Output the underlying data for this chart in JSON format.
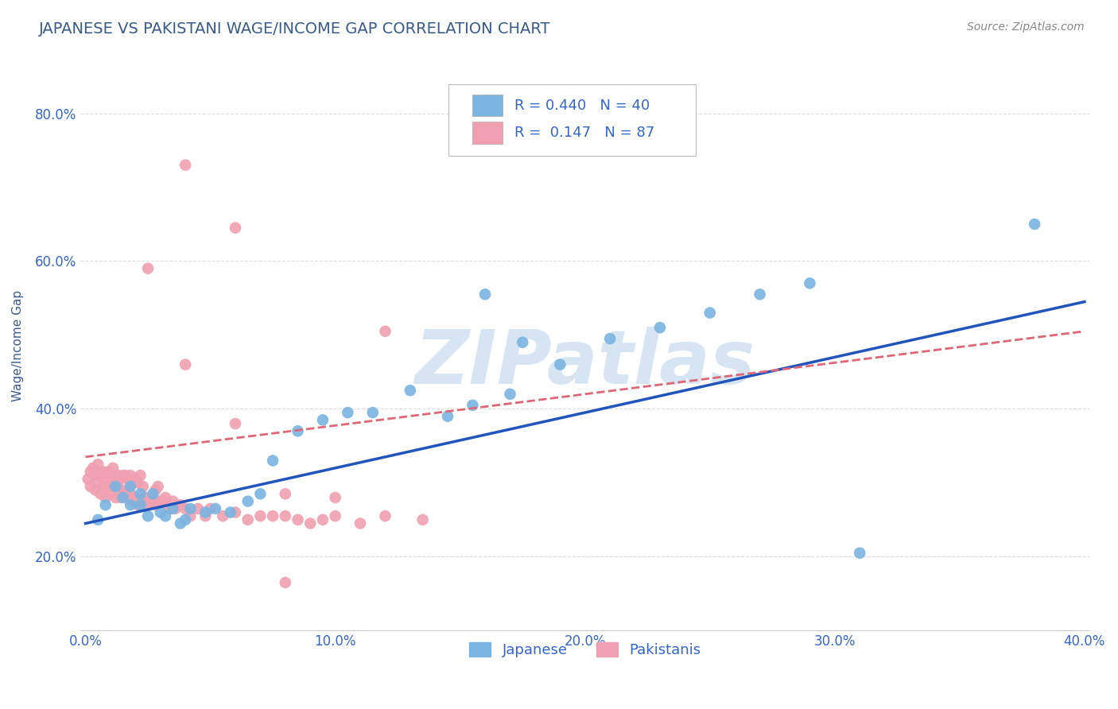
{
  "title": "JAPANESE VS PAKISTANI WAGE/INCOME GAP CORRELATION CHART",
  "source": "Source: ZipAtlas.com",
  "ylabel": "Wage/Income Gap",
  "xlim": [
    -0.002,
    0.402
  ],
  "ylim": [
    0.1,
    0.87
  ],
  "xticks": [
    0.0,
    0.1,
    0.2,
    0.3,
    0.4
  ],
  "xticklabels": [
    "0.0%",
    "10.0%",
    "20.0%",
    "30.0%",
    "40.0%"
  ],
  "yticks": [
    0.2,
    0.4,
    0.6,
    0.8
  ],
  "yticklabels": [
    "20.0%",
    "40.0%",
    "60.0%",
    "80.0%"
  ],
  "watermark": "ZIPatlas",
  "watermark_color": "#b0cce8",
  "background_color": "#ffffff",
  "title_color": "#3a5a8a",
  "title_fontsize": 14,
  "source_fontsize": 10,
  "axis_color": "#cccccc",
  "grid_color": "#dddddd",
  "legend_label_japanese": "Japanese",
  "legend_label_pakistani": "Pakistanis",
  "blue_color": "#7ab4e0",
  "pink_color": "#f0a0b0",
  "blue_line_color": "#2255bb",
  "pink_line_color": "#dd6677",
  "tick_label_color": "#3366cc",
  "tick_label_fontsize": 12,
  "blue_line_y0": 0.245,
  "blue_line_y1": 0.545,
  "pink_line_y0": 0.335,
  "pink_line_y1": 0.505,
  "japanese_x": [
    0.005,
    0.008,
    0.012,
    0.015,
    0.018,
    0.018,
    0.022,
    0.022,
    0.025,
    0.027,
    0.03,
    0.032,
    0.035,
    0.038,
    0.04,
    0.042,
    0.048,
    0.052,
    0.058,
    0.065,
    0.07,
    0.075,
    0.085,
    0.095,
    0.105,
    0.115,
    0.13,
    0.145,
    0.155,
    0.17,
    0.19,
    0.21,
    0.23,
    0.25,
    0.27,
    0.29,
    0.16,
    0.175,
    0.38,
    0.31
  ],
  "japanese_y": [
    0.25,
    0.27,
    0.295,
    0.28,
    0.27,
    0.295,
    0.285,
    0.27,
    0.255,
    0.285,
    0.26,
    0.255,
    0.265,
    0.245,
    0.25,
    0.265,
    0.26,
    0.265,
    0.26,
    0.275,
    0.285,
    0.33,
    0.37,
    0.385,
    0.395,
    0.395,
    0.425,
    0.39,
    0.405,
    0.42,
    0.46,
    0.495,
    0.51,
    0.53,
    0.555,
    0.57,
    0.555,
    0.49,
    0.65,
    0.205
  ],
  "pakistani_x": [
    0.001,
    0.002,
    0.002,
    0.003,
    0.004,
    0.004,
    0.005,
    0.005,
    0.006,
    0.006,
    0.007,
    0.007,
    0.008,
    0.008,
    0.009,
    0.009,
    0.01,
    0.01,
    0.011,
    0.011,
    0.012,
    0.012,
    0.013,
    0.013,
    0.014,
    0.014,
    0.015,
    0.015,
    0.016,
    0.016,
    0.017,
    0.017,
    0.018,
    0.018,
    0.019,
    0.019,
    0.02,
    0.02,
    0.021,
    0.021,
    0.022,
    0.022,
    0.023,
    0.023,
    0.024,
    0.025,
    0.026,
    0.027,
    0.028,
    0.028,
    0.029,
    0.029,
    0.03,
    0.031,
    0.032,
    0.033,
    0.034,
    0.035,
    0.036,
    0.038,
    0.04,
    0.042,
    0.045,
    0.048,
    0.05,
    0.055,
    0.06,
    0.065,
    0.07,
    0.075,
    0.08,
    0.085,
    0.09,
    0.095,
    0.1,
    0.11,
    0.12,
    0.135,
    0.025,
    0.04,
    0.06,
    0.08,
    0.1,
    0.04,
    0.06,
    0.12,
    0.08
  ],
  "pakistani_y": [
    0.305,
    0.315,
    0.295,
    0.32,
    0.29,
    0.31,
    0.3,
    0.325,
    0.285,
    0.31,
    0.295,
    0.315,
    0.28,
    0.305,
    0.295,
    0.315,
    0.285,
    0.31,
    0.295,
    0.32,
    0.28,
    0.305,
    0.295,
    0.31,
    0.28,
    0.305,
    0.285,
    0.31,
    0.29,
    0.31,
    0.28,
    0.305,
    0.285,
    0.31,
    0.275,
    0.3,
    0.28,
    0.305,
    0.27,
    0.3,
    0.275,
    0.31,
    0.275,
    0.295,
    0.28,
    0.27,
    0.275,
    0.28,
    0.27,
    0.29,
    0.275,
    0.295,
    0.275,
    0.275,
    0.28,
    0.27,
    0.265,
    0.275,
    0.265,
    0.27,
    0.265,
    0.255,
    0.265,
    0.255,
    0.265,
    0.255,
    0.26,
    0.25,
    0.255,
    0.255,
    0.255,
    0.25,
    0.245,
    0.25,
    0.255,
    0.245,
    0.255,
    0.25,
    0.59,
    0.46,
    0.38,
    0.285,
    0.28,
    0.73,
    0.645,
    0.505,
    0.165
  ]
}
